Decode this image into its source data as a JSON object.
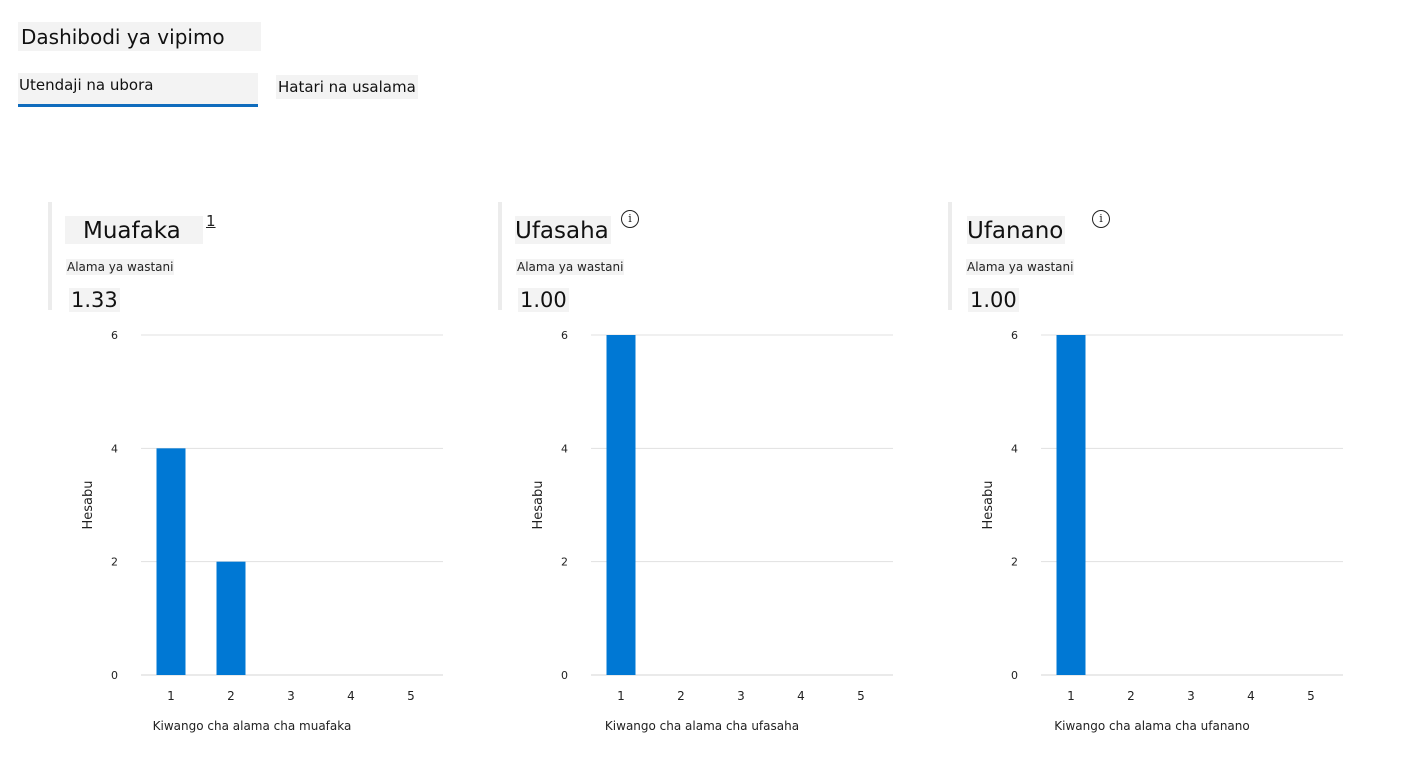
{
  "page": {
    "title": "Dashibodi ya vipimo"
  },
  "tabs": [
    {
      "label": "Utendaji na ubora",
      "active": true
    },
    {
      "label": "Hatari na usalama",
      "active": false
    }
  ],
  "colors": {
    "accent": "#0f6cbd",
    "bar": "#0078d4",
    "grid": "#e1e1e1"
  },
  "cards": [
    {
      "title": "Muafaka",
      "title_suffix": "1",
      "icon": "info-icon",
      "avg_label": "Alama ya wastani",
      "avg_value": "1.33"
    },
    {
      "title": "Ufasaha",
      "icon": "info-icon",
      "avg_label": "Alama ya wastani",
      "avg_value": "1.00"
    },
    {
      "title": "Ufanano",
      "icon": "info-icon",
      "avg_label": "Alama ya wastani",
      "avg_value": "1.00"
    }
  ],
  "chart_data": [
    {
      "type": "bar",
      "categories": [
        "1",
        "2",
        "3",
        "4",
        "5"
      ],
      "values": [
        4,
        2,
        0,
        0,
        0
      ],
      "xlabel": "Kiwango cha alama cha muafaka",
      "ylabel": "Hesabu",
      "ylim": [
        0,
        6
      ],
      "yticks": [
        "0",
        "2",
        "4",
        "6"
      ],
      "grid": true
    },
    {
      "type": "bar",
      "categories": [
        "1",
        "2",
        "3",
        "4",
        "5"
      ],
      "values": [
        6,
        0,
        0,
        0,
        0
      ],
      "xlabel": "Kiwango cha alama cha ufasaha",
      "ylabel": "Hesabu",
      "ylim": [
        0,
        6
      ],
      "yticks": [
        "0",
        "2",
        "4",
        "6"
      ],
      "grid": true
    },
    {
      "type": "bar",
      "categories": [
        "1",
        "2",
        "3",
        "4",
        "5"
      ],
      "values": [
        6,
        0,
        0,
        0,
        0
      ],
      "xlabel": "Kiwango cha alama cha ufanano",
      "ylabel": "Hesabu",
      "ylim": [
        0,
        6
      ],
      "yticks": [
        "0",
        "2",
        "4",
        "6"
      ],
      "grid": true
    }
  ]
}
